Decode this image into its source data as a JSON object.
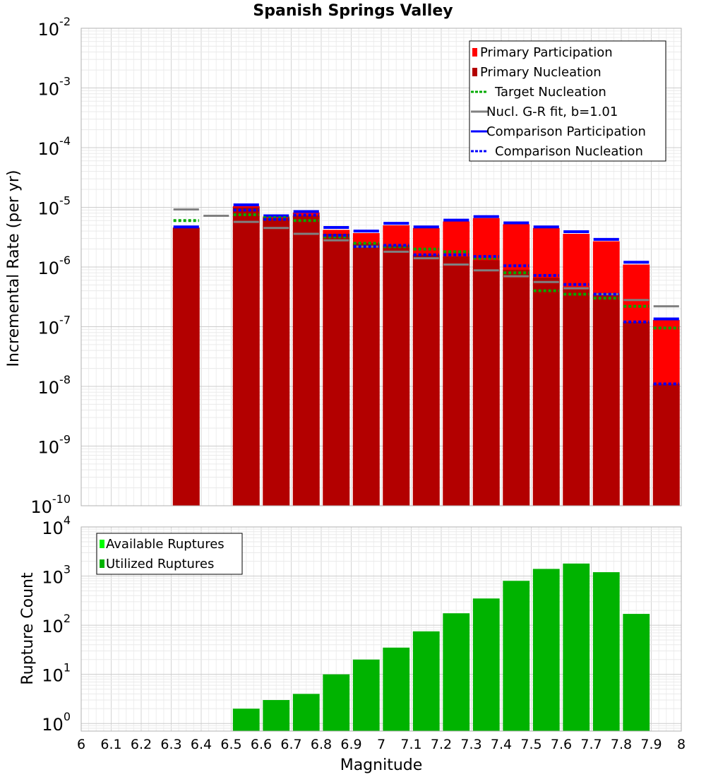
{
  "chart_data": [
    {
      "type": "bar",
      "title": "Spanish Springs Valley",
      "xlabel": "",
      "ylabel": "Incremental Rate (per yr)",
      "x_scale": "linear",
      "y_scale": "log",
      "xlim": [
        6,
        8
      ],
      "ylim": [
        1e-10,
        0.01
      ],
      "y_tick_exponents": [
        -10,
        -9,
        -8,
        -7,
        -6,
        -5,
        -4,
        -3,
        -2
      ],
      "grid": true,
      "legend_position": "top-right",
      "colors": {
        "primary_participation": "#ff0000",
        "primary_nucleation": "#b30000",
        "target_nucleation": "#00aa00",
        "gr_fit": "#808080",
        "comparison": "#0000ff"
      },
      "legend": [
        {
          "label": "Primary Participation",
          "style": "fill",
          "color": "#ff0000"
        },
        {
          "label": "Primary Nucleation",
          "style": "fill",
          "color": "#b30000"
        },
        {
          "label": "Target Nucleation",
          "style": "dotted",
          "color": "#00aa00"
        },
        {
          "label": "Nucl. G-R fit, b=1.01",
          "style": "solid",
          "color": "#808080"
        },
        {
          "label": "Comparison Participation",
          "style": "solid",
          "color": "#0000ff"
        },
        {
          "label": "Comparison Nucleation",
          "style": "dotted",
          "color": "#0000ff"
        }
      ],
      "series": [
        {
          "name": "Primary Participation",
          "x": [
            6.35,
            6.55,
            6.65,
            6.75,
            6.85,
            6.95,
            7.05,
            7.15,
            7.25,
            7.35,
            7.45,
            7.55,
            7.65,
            7.75,
            7.85,
            7.95
          ],
          "values": [
            4.6e-06,
            1.05e-05,
            7e-06,
            8.2e-06,
            4.2e-06,
            3.7e-06,
            5e-06,
            4.5e-06,
            5.8e-06,
            6.6e-06,
            5.2e-06,
            4.5e-06,
            3.6e-06,
            2.7e-06,
            1.1e-06,
            1.3e-07
          ]
        },
        {
          "name": "Primary Nucleation",
          "x": [
            6.35,
            6.55,
            6.65,
            6.75,
            6.85,
            6.95,
            7.05,
            7.15,
            7.25,
            7.35,
            7.45,
            7.55,
            7.65,
            7.75,
            7.85,
            7.95
          ],
          "values": [
            4.5e-06,
            1e-05,
            6.6e-06,
            7.3e-06,
            3.6e-06,
            2.5e-06,
            2.3e-06,
            1.6e-06,
            1.5e-06,
            1.3e-06,
            9e-07,
            6.6e-07,
            4.6e-07,
            3.5e-07,
            1.2e-07,
            1.1e-08
          ]
        },
        {
          "name": "Target Nucleation",
          "x": [
            6.35,
            6.55,
            6.65,
            6.75,
            6.85,
            6.95,
            7.05,
            7.15,
            7.25,
            7.35,
            7.45,
            7.55,
            7.65,
            7.75,
            7.85,
            7.95
          ],
          "values": [
            6e-06,
            7.5e-06,
            6.7e-06,
            6e-06,
            3.2e-06,
            2.5e-06,
            2.2e-06,
            2e-06,
            1.8e-06,
            1.4e-06,
            8e-07,
            4e-07,
            3.5e-07,
            3e-07,
            2.2e-07,
            9.5e-08
          ]
        },
        {
          "name": "Nucl. G-R fit, b=1.01",
          "x": [
            6.35,
            6.45,
            6.55,
            6.65,
            6.75,
            6.85,
            6.95,
            7.05,
            7.15,
            7.25,
            7.35,
            7.45,
            7.55,
            7.65,
            7.75,
            7.85,
            7.95
          ],
          "values": [
            9.2e-06,
            7.2e-06,
            5.7e-06,
            4.5e-06,
            3.6e-06,
            2.8e-06,
            2.2e-06,
            1.8e-06,
            1.4e-06,
            1.1e-06,
            8.8e-07,
            7e-07,
            5.6e-07,
            4.4e-07,
            3.5e-07,
            2.8e-07,
            2.2e-07
          ]
        },
        {
          "name": "Comparison Participation",
          "x": [
            6.35,
            6.55,
            6.65,
            6.75,
            6.85,
            6.95,
            7.05,
            7.15,
            7.25,
            7.35,
            7.45,
            7.55,
            7.65,
            7.75,
            7.85,
            7.95
          ],
          "values": [
            4.7e-06,
            1.1e-05,
            7.2e-06,
            8.5e-06,
            4.6e-06,
            4e-06,
            5.4e-06,
            4.7e-06,
            6.1e-06,
            7e-06,
            5.5e-06,
            4.7e-06,
            3.9e-06,
            2.9e-06,
            1.2e-06,
            1.35e-07
          ]
        },
        {
          "name": "Comparison Nucleation",
          "x": [
            6.55,
            6.65,
            6.75,
            6.85,
            6.95,
            7.05,
            7.15,
            7.25,
            7.35,
            7.45,
            7.55,
            7.65,
            7.75,
            7.85,
            7.95
          ],
          "values": [
            9e-06,
            6.3e-06,
            7.4e-06,
            3.4e-06,
            2.2e-06,
            2.3e-06,
            1.6e-06,
            1.6e-06,
            1.5e-06,
            1.05e-06,
            7.2e-07,
            5.1e-07,
            3.5e-07,
            1.2e-07,
            1.1e-08
          ]
        }
      ]
    },
    {
      "type": "bar",
      "xlabel": "Magnitude",
      "ylabel": "Rupture Count",
      "x_scale": "linear",
      "y_scale": "log",
      "xlim": [
        6,
        8
      ],
      "ylim": [
        0.7,
        10000
      ],
      "y_tick_exponents": [
        0,
        1,
        2,
        3,
        4
      ],
      "x_ticks": [
        "6",
        "6.1",
        "6.2",
        "6.3",
        "6.4",
        "6.5",
        "6.6",
        "6.7",
        "6.8",
        "6.9",
        "7",
        "7.1",
        "7.2",
        "7.3",
        "7.4",
        "7.5",
        "7.6",
        "7.7",
        "7.8",
        "7.9",
        "8"
      ],
      "grid": true,
      "legend_position": "top-left",
      "colors": {
        "available": "#00ff00",
        "utilized": "#00b300"
      },
      "legend": [
        {
          "label": "Available Ruptures",
          "color": "#00ff00"
        },
        {
          "label": "Utilized Ruptures",
          "color": "#00b300"
        }
      ],
      "series": [
        {
          "name": "Utilized Ruptures",
          "x": [
            6.55,
            6.65,
            6.75,
            6.85,
            6.95,
            7.05,
            7.15,
            7.25,
            7.35,
            7.45,
            7.55,
            7.65,
            7.75,
            7.85
          ],
          "values": [
            2,
            3,
            4,
            10,
            20,
            35,
            75,
            175,
            350,
            800,
            1400,
            1800,
            1200,
            170
          ]
        }
      ]
    }
  ]
}
